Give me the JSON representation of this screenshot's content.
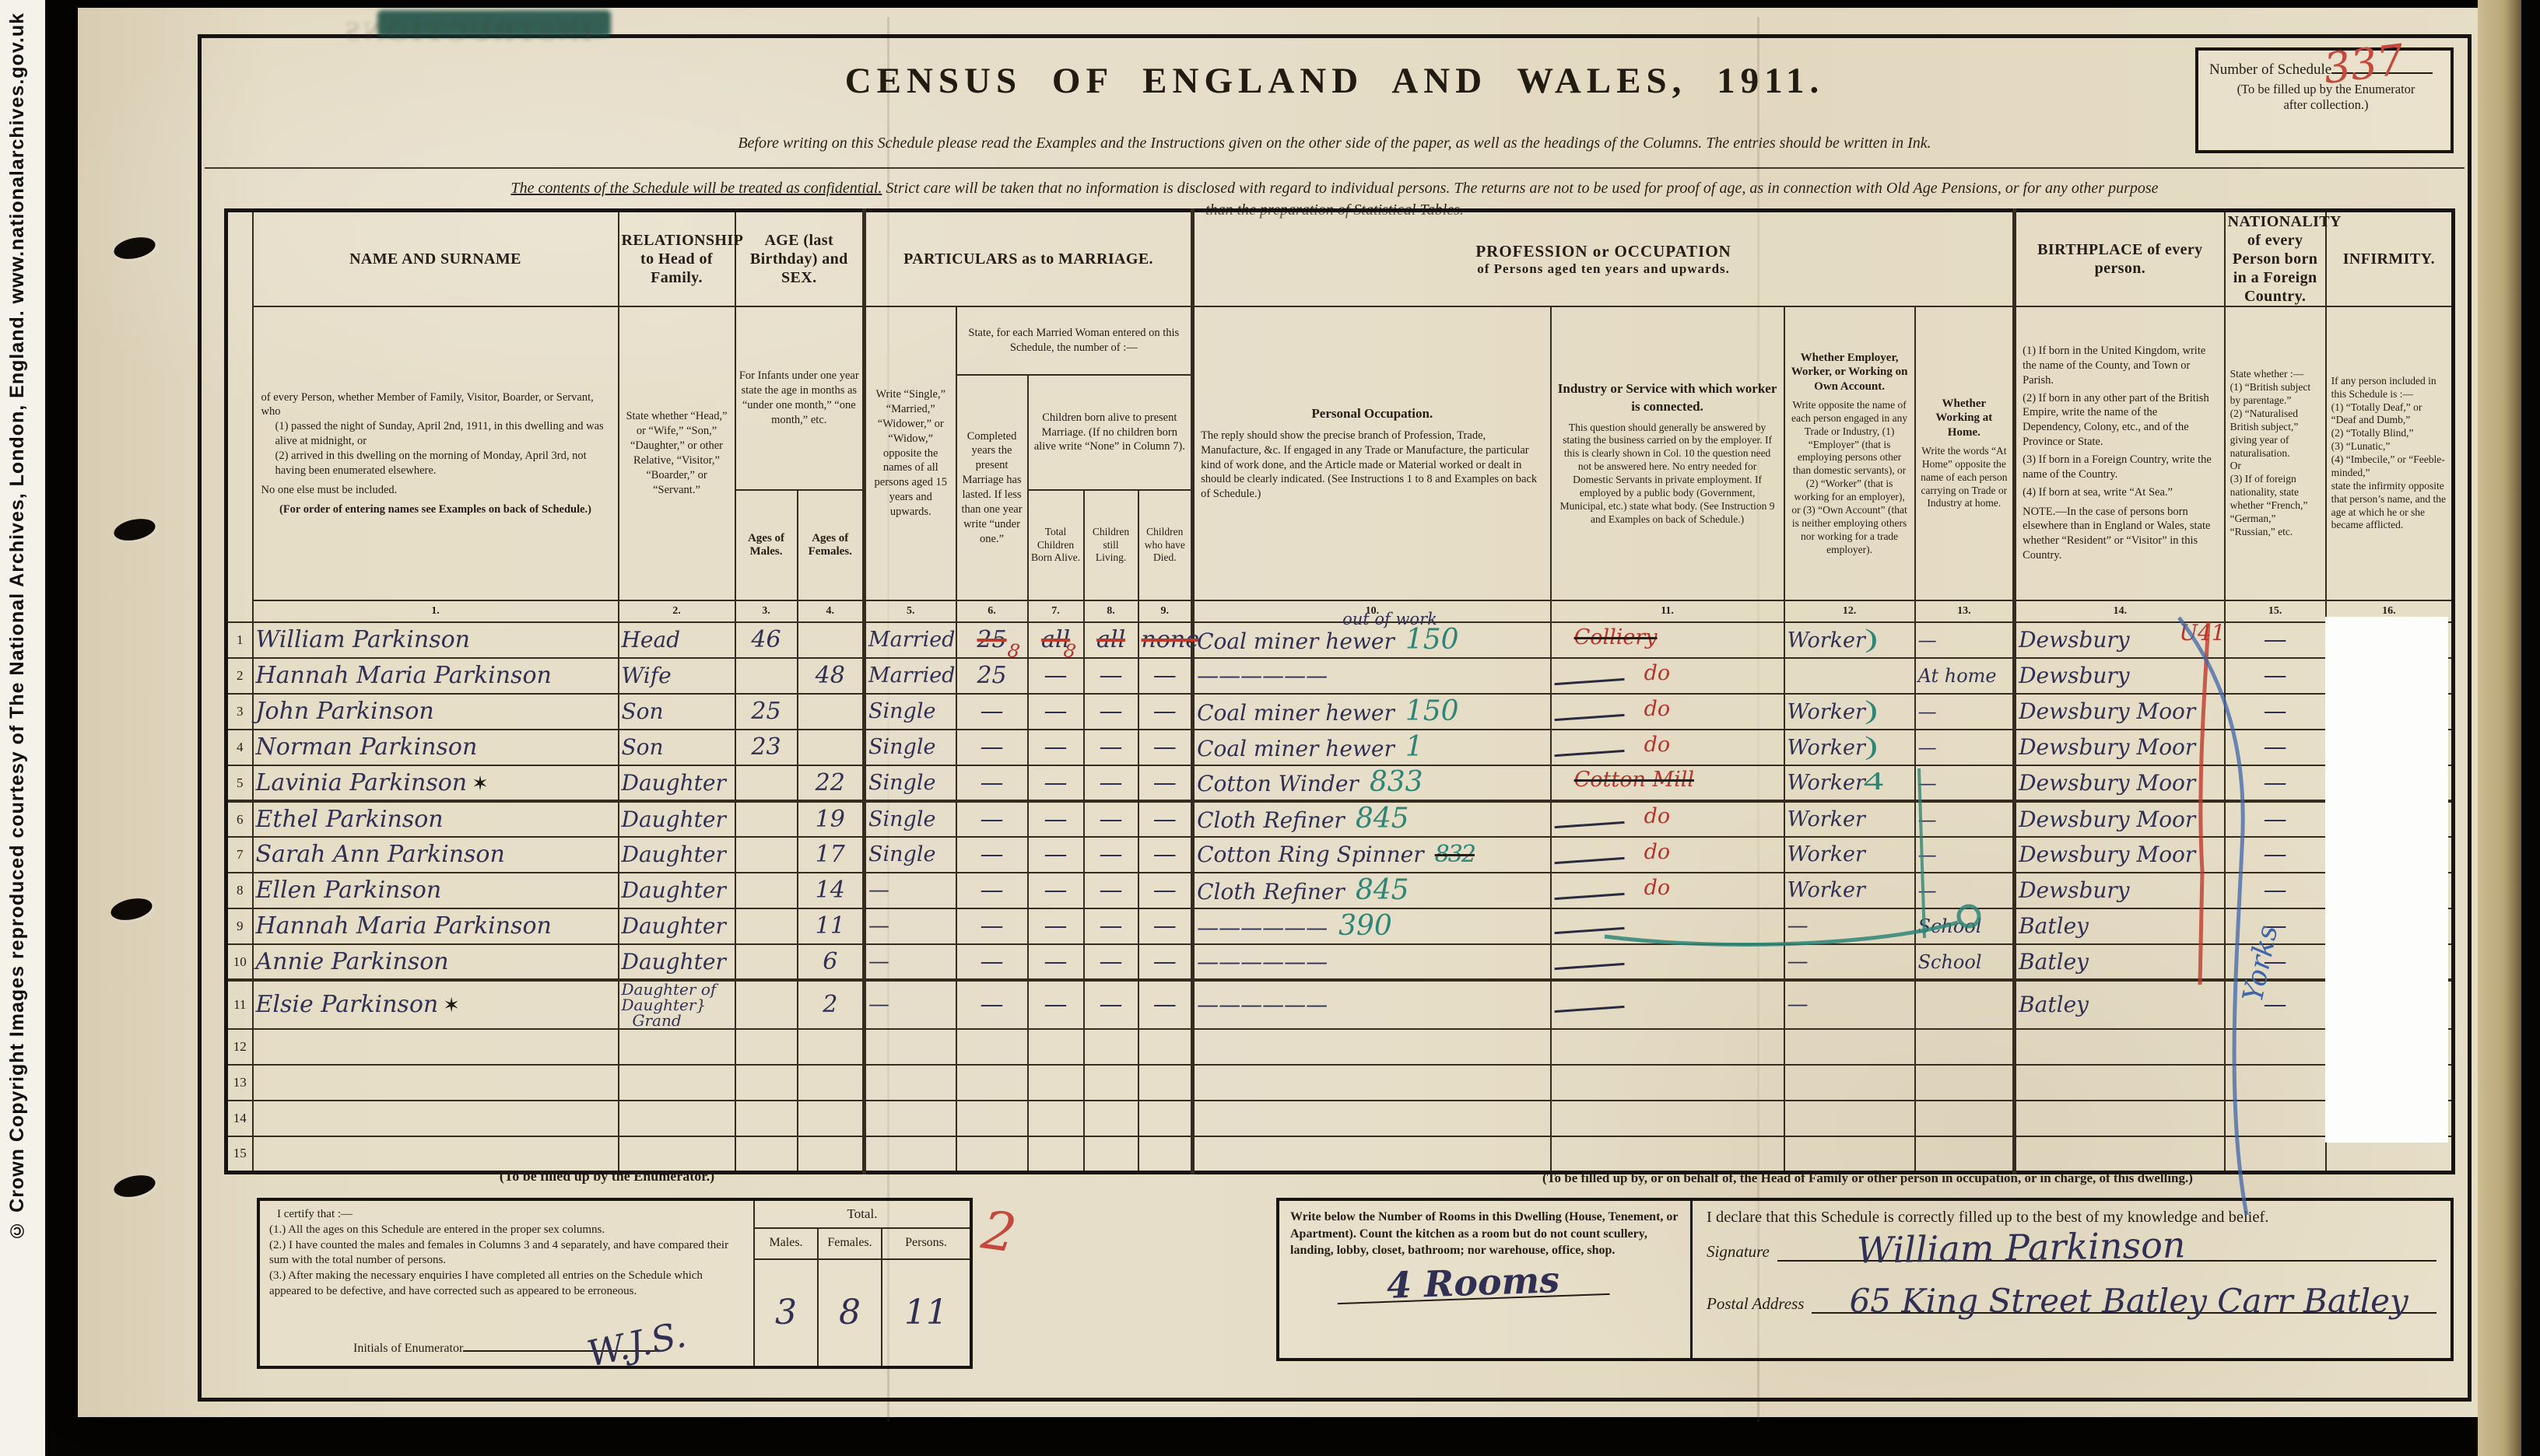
{
  "copyright": "© Crown Copyright Images reproduced courtesy of The National Archives, London, England. www.nationalarchives.gov.uk",
  "schedule_box": {
    "label": "Number of Schedule",
    "note1": "(To be filled up by the Enumerator",
    "note2": "after collection.)",
    "number": "337"
  },
  "header": {
    "title": "CENSUS OF ENGLAND AND WALES, 1911.",
    "instruction": "Before writing on this Schedule please read the Examples and the Instructions given on the other side of the paper, as well as the headings of the Columns.   The entries should be written in Ink.",
    "confidential_lead": "The contents of the Schedule will be treated as confidential.",
    "confidential_rest": "  Strict care will be taken that no information is disclosed with regard to individual persons.  The returns are not to be used for proof of age, as in connection with Old Age Pensions, or for any other purpose",
    "confidential_line2": "than the preparation of Statistical Tables.",
    "bleed": "INSTRUCTIONS"
  },
  "columns": {
    "name_title": "NAME AND SURNAME",
    "name_desc1": "of every Person, whether Member of Family, Visitor, Boarder, or Servant, who",
    "name_desc2": "(1) passed the night of Sunday, April 2nd, 1911, in this dwelling and was alive at midnight, or",
    "name_desc3": "(2) arrived in this dwelling on the morning of Monday, April 3rd, not having been enumerated elsewhere.",
    "name_desc4": "No one else must be included.",
    "name_desc5": "(For order of entering names see Examples on back of Schedule.)",
    "rel_title": "RELATIONSHIP to Head of Family.",
    "rel_desc": "State whether “Head,” or “Wife,” “Son,” “Daughter,” or other Relative, “Visitor,” “Boarder,” or “Servant.”",
    "age_title": "AGE (last Birthday) and SEX.",
    "age_desc": "For Infants under one year state the age in months as “under one month,” “one month,” etc.",
    "age_males": "Ages of Males.",
    "age_females": "Ages of Females.",
    "marriage_title": "PARTICULARS as to MARRIAGE.",
    "cond_desc": "Write “Single,” “Married,” “Widower,” or “Widow,” opposite the names of all persons aged 15 years and upwards.",
    "married_note": "State, for each Married Woman entered on this Schedule, the number of :—",
    "years_desc": "Completed years the present Marriage has lasted. If less than one year write “under one.”",
    "children_note": "Children born alive to present Marriage. (If no children born alive write “None” in Column 7).",
    "born_label": "Total Children Born Alive.",
    "living_label": "Children still Living.",
    "died_label": "Children who have Died.",
    "prof_title": "PROFESSION or OCCUPATION",
    "prof_sub": "of Persons aged ten years and upwards.",
    "occ_title": "Personal Occupation.",
    "occ_desc": "The reply should show the precise branch of Profession, Trade, Manufacture, &c.  If engaged in any Trade or Manufacture, the particular kind of work done, and the Article made or Material worked or dealt in should be clearly indicated.  (See Instructions 1 to 8 and Examples on back of Schedule.)",
    "ind_title": "Industry or Service with which worker is connected.",
    "ind_desc": "This question should generally be answered by stating the business carried on by the employer.  If this is clearly shown in Col. 10 the question need not be answered here. No entry needed for Domestic Servants in private employment. If employed by a public body (Government, Municipal, etc.) state what body. (See Instruction 9 and Examples on back of Schedule.)",
    "emp_title": "Whether Employer, Worker, or Working on Own Account.",
    "emp_desc": "Write opposite the name of each person engaged in any Trade or Industry, (1) “Employer” (that is employing persons other than domestic servants), or (2) “Worker” (that is working for an employer), or (3) “Own Account” (that is neither employing others nor working for a trade employer).",
    "home_title": "Whether Working at Home.",
    "home_desc": "Write the words “At Home” opposite the name of each person carrying on Trade or Industry at home.",
    "birth_title": "BIRTHPLACE of every person.",
    "birth_desc1": "(1) If born in the United Kingdom, write the name of the County, and Town or Parish.",
    "birth_desc2": "(2) If born in any other part of the British Empire, write the name of the Dependency, Colony, etc., and of the Province or State.",
    "birth_desc3": "(3) If born in a Foreign Country, write the name of the Country.",
    "birth_desc4": "(4) If born at sea, write “At Sea.”",
    "birth_note": "NOTE.—In the case of persons born elsewhere than in England or Wales, state whether “Resident” or “Visitor” in this Country.",
    "nat_title": "NATIONALITY of every Person born in a Foreign Country.",
    "nat_desc1": "State whether :—",
    "nat_desc2": "(1) “British subject by parentage.”",
    "nat_desc3": "(2) “Naturalised British subject,” giving year of naturalisation.",
    "nat_desc4": "Or",
    "nat_desc5": "(3) If of foreign nationality, state whether “French,” “German,” “Russian,” etc.",
    "inf_title": "INFIRMITY.",
    "inf_desc1": "If any person included in this Schedule is :—",
    "inf_desc2": "(1) “Totally Deaf,” or “Deaf and Dumb,”",
    "inf_desc3": "(2) “Totally Blind,”",
    "inf_desc4": "(3) “Lunatic,”",
    "inf_desc5": "(4) “Imbecile,” or “Feeble-minded,”",
    "inf_desc6": "state the infirmity opposite that person’s name, and the age at which he or she became afflicted.",
    "numbers": [
      "1.",
      "2.",
      "3.",
      "4.",
      "5.",
      "6.",
      "7.",
      "8.",
      "9.",
      "10.",
      "11.",
      "12.",
      "13.",
      "14.",
      "15.",
      "16."
    ]
  },
  "rows": [
    {
      "num": "1",
      "name": "William Parkinson",
      "star": "",
      "rel": "Head",
      "ageM": "46",
      "ageF": "",
      "cond": "Married",
      "years": "25",
      "born": "all",
      "living": "all",
      "died": "none",
      "marrStruck": true,
      "red8": "8",
      "occ": "Coal miner hewer",
      "occNote": "out of work",
      "occNum": "150",
      "ind": "Colliery",
      "indRed": true,
      "indStruck": true,
      "indDash": false,
      "worker": "Worker",
      "wmark": ")",
      "home": "—",
      "birth": "Dewsbury",
      "birthNote": "U41",
      "nat": "—"
    },
    {
      "num": "2",
      "name": "Hannah Maria Parkinson",
      "rel": "Wife",
      "ageM": "",
      "ageF": "48",
      "cond": "Married",
      "years": "25",
      "born": "—",
      "living": "—",
      "died": "—",
      "occ": "——————",
      "ind": "do",
      "indRed": true,
      "indDash": true,
      "worker": "",
      "home": "At home",
      "birth": "Dewsbury",
      "nat": "—"
    },
    {
      "num": "3",
      "name": "John Parkinson",
      "rel": "Son",
      "ageM": "25",
      "ageF": "",
      "cond": "Single",
      "years": "—",
      "born": "—",
      "living": "—",
      "died": "—",
      "occ": "Coal miner hewer",
      "occNum": "150",
      "ind": "do",
      "indRed": true,
      "indDash": true,
      "worker": "Worker",
      "wmark": ")",
      "home": "—",
      "birth": "Dewsbury Moor",
      "nat": "—"
    },
    {
      "num": "4",
      "name": "Norman Parkinson",
      "rel": "Son",
      "ageM": "23",
      "ageF": "",
      "cond": "Single",
      "years": "—",
      "born": "—",
      "living": "—",
      "died": "—",
      "occ": "Coal miner hewer",
      "occNum": "1",
      "ind": "do",
      "indRed": true,
      "indDash": true,
      "worker": "Worker",
      "wmark": ")",
      "home": "—",
      "birth": "Dewsbury Moor",
      "nat": "—"
    },
    {
      "num": "5",
      "name": "Lavinia Parkinson",
      "star": "✶",
      "rel": "Daughter",
      "ageM": "",
      "ageF": "22",
      "cond": "Single",
      "years": "—",
      "born": "—",
      "living": "—",
      "died": "—",
      "occ": "Cotton Winder",
      "occNum": "833",
      "ind": "Cotton Mill",
      "indRed": true,
      "indStruck": true,
      "worker": "Worker",
      "wmark": "4",
      "home": "—",
      "birth": "Dewsbury Moor",
      "nat": "—"
    },
    {
      "num": "6",
      "name": "Ethel Parkinson",
      "rel": "Daughter",
      "ageM": "",
      "ageF": "19",
      "cond": "Single",
      "years": "—",
      "born": "—",
      "living": "—",
      "died": "—",
      "occ": "Cloth Refiner",
      "occNum": "845",
      "ind": "do",
      "indRed": true,
      "indDash": true,
      "worker": "Worker",
      "home": "—",
      "birth": "Dewsbury Moor",
      "nat": "—"
    },
    {
      "num": "7",
      "name": "Sarah Ann Parkinson",
      "rel": "Daughter",
      "ageM": "",
      "ageF": "17",
      "cond": "Single",
      "years": "—",
      "born": "—",
      "living": "—",
      "died": "—",
      "occ": "Cotton Ring Spinner",
      "occNum": "832",
      "occScribble": true,
      "ind": "do",
      "indRed": true,
      "indDash": true,
      "worker": "Worker",
      "home": "—",
      "birth": "Dewsbury Moor",
      "nat": "—"
    },
    {
      "num": "8",
      "name": "Ellen Parkinson",
      "rel": "Daughter",
      "ageM": "",
      "ageF": "14",
      "cond": "—",
      "years": "—",
      "born": "—",
      "living": "—",
      "died": "—",
      "occ": "Cloth Refiner",
      "occNum": "845",
      "ind": "do",
      "indRed": true,
      "indDash": true,
      "worker": "Worker",
      "home": "—",
      "birth": "Dewsbury",
      "nat": "—"
    },
    {
      "num": "9",
      "name": "Hannah Maria Parkinson",
      "rel": "Daughter",
      "ageM": "",
      "ageF": "11",
      "cond": "—",
      "years": "—",
      "born": "—",
      "living": "—",
      "died": "—",
      "occ": "——————",
      "occNum": "390",
      "ind": "",
      "indDash": true,
      "worker": "—",
      "home": "School",
      "birth": "Batley",
      "nat": "—"
    },
    {
      "num": "10",
      "name": "Annie Parkinson",
      "rel": "Daughter",
      "ageM": "",
      "ageF": "6",
      "cond": "—",
      "years": "—",
      "born": "—",
      "living": "—",
      "died": "—",
      "occ": "——————",
      "ind": "",
      "indDash": true,
      "worker": "—",
      "home": "School",
      "birth": "Batley",
      "nat": "—"
    },
    {
      "num": "11",
      "name": "Elsie Parkinson",
      "star": "✶",
      "rel": "Daughter of",
      "rel2": "Daughter",
      "rel3": "Grand",
      "ageM": "",
      "ageF": "2",
      "cond": "—",
      "years": "—",
      "born": "—",
      "living": "—",
      "died": "—",
      "occ": "——————",
      "ind": "",
      "indDash": true,
      "worker": "—",
      "home": "",
      "birth": "Batley",
      "nat": "—"
    },
    {
      "num": "12"
    },
    {
      "num": "13"
    },
    {
      "num": "14"
    },
    {
      "num": "15"
    }
  ],
  "enumerator": {
    "heading": "(To be filled up by the Enumerator.)",
    "certify": "I certify that :—",
    "c1": "(1.) All the ages on this Schedule are entered in the proper sex columns.",
    "c2": "(2.) I have counted the males and females in Columns 3 and 4 separately, and have compared their sum with the total number of persons.",
    "c3": "(3.) After making the necessary enquiries I have completed all entries on the Schedule which appeared to be defective, and have corrected such as appeared to be erroneous.",
    "initials_label": "Initials of Enumerator",
    "initials_value": "W.J.S.",
    "total_label": "Total.",
    "males_label": "Males.",
    "males_value": "3",
    "females_label": "Females.",
    "females_value": "8",
    "persons_label": "Persons.",
    "persons_value": "11",
    "red_mark": "2"
  },
  "dwelling": {
    "heading": "(To be filled up by, or on behalf of, the Head of Family or other person in occupation, or in charge, of this dwelling.)",
    "rooms_text": "Write below the Number of Rooms in this Dwelling (House, Tenement, or Apartment).  Count the kitchen as a room but do not count scullery, landing, lobby, closet, bathroom; nor warehouse, office, shop.",
    "rooms_value": "4 Rooms",
    "declaration": "I declare that this Schedule is correctly filled up to the best of my knowledge and belief.",
    "sig_label": "Signature",
    "sig_value": "William Parkinson",
    "postal_label": "Postal Address",
    "postal_value": "65 King Street Batley Carr Batley"
  },
  "annotations": {
    "u41": "U41",
    "yorks": "Yorks",
    "red2": "2",
    "schedule_number": "337"
  }
}
